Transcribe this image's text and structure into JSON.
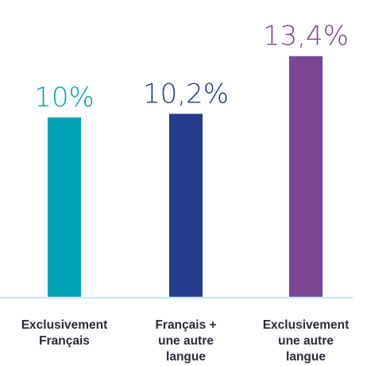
{
  "chart_data": {
    "type": "bar",
    "categories": [
      [
        "Exclusivement",
        "Français"
      ],
      [
        "Français +",
        "une autre",
        "langue"
      ],
      [
        "Exclusivement",
        "une autre",
        "langue"
      ]
    ],
    "values": [
      10,
      10.2,
      13.4
    ],
    "value_labels": [
      "10%",
      "10,2%",
      "13,4%"
    ],
    "colors": [
      "#00a3b4",
      "#243a8c",
      "#7a4592"
    ],
    "axis_color": "#cdebf1",
    "title": "",
    "xlabel": "",
    "ylabel": "",
    "ylim": [
      0,
      14.4
    ],
    "grid": false,
    "legend": "none"
  }
}
